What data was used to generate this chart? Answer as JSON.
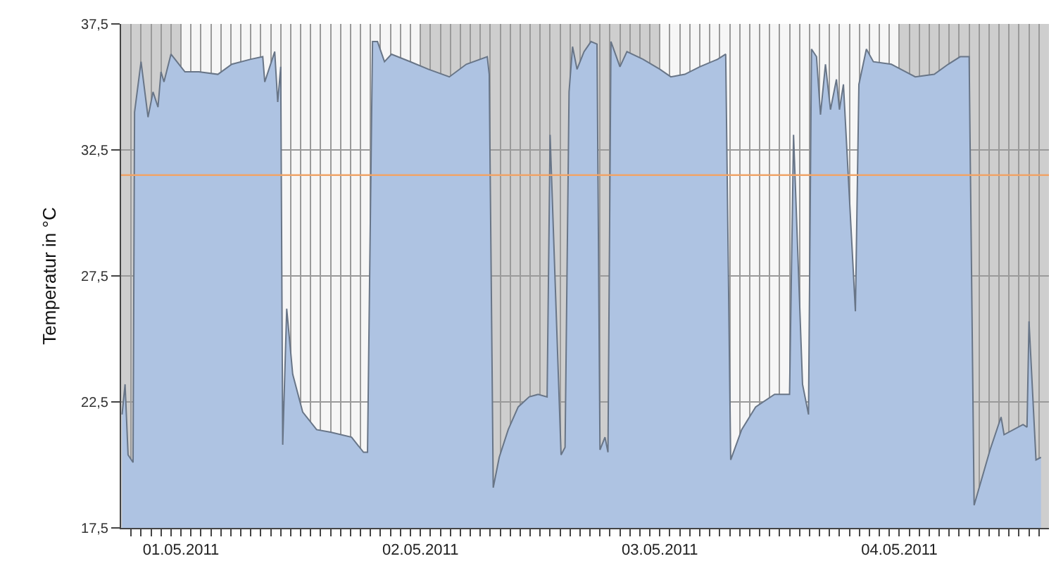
{
  "chart_data": {
    "type": "area",
    "ylabel": "Temperatur in °C",
    "xlim": [
      "2011-04-30T18:00",
      "2011-05-04T15:00"
    ],
    "ylim": [
      17.5,
      37.5
    ],
    "yticks": [
      {
        "value": 17.5,
        "label": "17,5"
      },
      {
        "value": 22.5,
        "label": "22,5"
      },
      {
        "value": 27.5,
        "label": "27,5"
      },
      {
        "value": 32.5,
        "label": "32,5"
      },
      {
        "value": 37.5,
        "label": "37,5"
      }
    ],
    "xticks": [
      {
        "value": "2011-04-30T19:00",
        "label": null
      },
      {
        "value": "2011-04-30T20:00",
        "label": null
      },
      {
        "value": "2011-04-30T21:00",
        "label": null
      },
      {
        "value": "2011-04-30T22:00",
        "label": null
      },
      {
        "value": "2011-04-30T23:00",
        "label": null
      },
      {
        "value": "2011-05-01T00:00",
        "label": "01.05.2011"
      },
      {
        "value": "2011-05-01T01:00",
        "label": null
      },
      {
        "value": "2011-05-01T02:00",
        "label": null
      },
      {
        "value": "2011-05-01T03:00",
        "label": null
      },
      {
        "value": "2011-05-01T04:00",
        "label": null
      },
      {
        "value": "2011-05-01T05:00",
        "label": null
      },
      {
        "value": "2011-05-01T06:00",
        "label": null
      },
      {
        "value": "2011-05-01T07:00",
        "label": null
      },
      {
        "value": "2011-05-01T08:00",
        "label": null
      },
      {
        "value": "2011-05-01T09:00",
        "label": null
      },
      {
        "value": "2011-05-01T10:00",
        "label": null
      },
      {
        "value": "2011-05-01T11:00",
        "label": null
      },
      {
        "value": "2011-05-01T12:00",
        "label": null
      },
      {
        "value": "2011-05-01T13:00",
        "label": null
      },
      {
        "value": "2011-05-01T14:00",
        "label": null
      },
      {
        "value": "2011-05-01T15:00",
        "label": null
      },
      {
        "value": "2011-05-01T16:00",
        "label": null
      },
      {
        "value": "2011-05-01T17:00",
        "label": null
      },
      {
        "value": "2011-05-01T18:00",
        "label": null
      },
      {
        "value": "2011-05-01T19:00",
        "label": null
      },
      {
        "value": "2011-05-01T20:00",
        "label": null
      },
      {
        "value": "2011-05-01T21:00",
        "label": null
      },
      {
        "value": "2011-05-01T22:00",
        "label": null
      },
      {
        "value": "2011-05-01T23:00",
        "label": null
      },
      {
        "value": "2011-05-02T00:00",
        "label": "02.05.2011"
      },
      {
        "value": "2011-05-02T01:00",
        "label": null
      },
      {
        "value": "2011-05-02T02:00",
        "label": null
      },
      {
        "value": "2011-05-02T03:00",
        "label": null
      },
      {
        "value": "2011-05-02T04:00",
        "label": null
      },
      {
        "value": "2011-05-02T05:00",
        "label": null
      },
      {
        "value": "2011-05-02T06:00",
        "label": null
      },
      {
        "value": "2011-05-02T07:00",
        "label": null
      },
      {
        "value": "2011-05-02T08:00",
        "label": null
      },
      {
        "value": "2011-05-02T09:00",
        "label": null
      },
      {
        "value": "2011-05-02T10:00",
        "label": null
      },
      {
        "value": "2011-05-02T11:00",
        "label": null
      },
      {
        "value": "2011-05-02T12:00",
        "label": null
      },
      {
        "value": "2011-05-02T13:00",
        "label": null
      },
      {
        "value": "2011-05-02T14:00",
        "label": null
      },
      {
        "value": "2011-05-02T15:00",
        "label": null
      },
      {
        "value": "2011-05-02T16:00",
        "label": null
      },
      {
        "value": "2011-05-02T17:00",
        "label": null
      },
      {
        "value": "2011-05-02T18:00",
        "label": null
      },
      {
        "value": "2011-05-02T19:00",
        "label": null
      },
      {
        "value": "2011-05-02T20:00",
        "label": null
      },
      {
        "value": "2011-05-02T21:00",
        "label": null
      },
      {
        "value": "2011-05-02T22:00",
        "label": null
      },
      {
        "value": "2011-05-02T23:00",
        "label": null
      },
      {
        "value": "2011-05-03T00:00",
        "label": "03.05.2011"
      },
      {
        "value": "2011-05-03T01:00",
        "label": null
      },
      {
        "value": "2011-05-03T02:00",
        "label": null
      },
      {
        "value": "2011-05-03T03:00",
        "label": null
      },
      {
        "value": "2011-05-03T04:00",
        "label": null
      },
      {
        "value": "2011-05-03T05:00",
        "label": null
      },
      {
        "value": "2011-05-03T06:00",
        "label": null
      },
      {
        "value": "2011-05-03T07:00",
        "label": null
      },
      {
        "value": "2011-05-03T08:00",
        "label": null
      },
      {
        "value": "2011-05-03T09:00",
        "label": null
      },
      {
        "value": "2011-05-03T10:00",
        "label": null
      },
      {
        "value": "2011-05-03T11:00",
        "label": null
      },
      {
        "value": "2011-05-03T12:00",
        "label": null
      },
      {
        "value": "2011-05-03T13:00",
        "label": null
      },
      {
        "value": "2011-05-03T14:00",
        "label": null
      },
      {
        "value": "2011-05-03T15:00",
        "label": null
      },
      {
        "value": "2011-05-03T16:00",
        "label": null
      },
      {
        "value": "2011-05-03T17:00",
        "label": null
      },
      {
        "value": "2011-05-03T18:00",
        "label": null
      },
      {
        "value": "2011-05-03T19:00",
        "label": null
      },
      {
        "value": "2011-05-03T20:00",
        "label": null
      },
      {
        "value": "2011-05-03T21:00",
        "label": null
      },
      {
        "value": "2011-05-03T22:00",
        "label": null
      },
      {
        "value": "2011-05-03T23:00",
        "label": null
      },
      {
        "value": "2011-05-04T00:00",
        "label": "04.05.2011"
      },
      {
        "value": "2011-05-04T01:00",
        "label": null
      },
      {
        "value": "2011-05-04T02:00",
        "label": null
      },
      {
        "value": "2011-05-04T03:00",
        "label": null
      },
      {
        "value": "2011-05-04T04:00",
        "label": null
      },
      {
        "value": "2011-05-04T05:00",
        "label": null
      },
      {
        "value": "2011-05-04T06:00",
        "label": null
      },
      {
        "value": "2011-05-04T07:00",
        "label": null
      },
      {
        "value": "2011-05-04T08:00",
        "label": null
      },
      {
        "value": "2011-05-04T09:00",
        "label": null
      },
      {
        "value": "2011-05-04T10:00",
        "label": null
      },
      {
        "value": "2011-05-04T11:00",
        "label": null
      },
      {
        "value": "2011-05-04T12:00",
        "label": null
      },
      {
        "value": "2011-05-04T13:00",
        "label": null
      },
      {
        "value": "2011-05-04T14:00",
        "label": null
      }
    ],
    "grid": true,
    "bands": [
      {
        "axis": "x",
        "from": "2011-04-30T18:00",
        "to": "2011-05-01T00:00",
        "color": "#c4c4c4"
      },
      {
        "axis": "x",
        "from": "2011-05-02T00:00",
        "to": "2011-05-03T00:00",
        "color": "#c4c4c4"
      },
      {
        "axis": "x",
        "from": "2011-05-04T00:00",
        "to": "2011-05-04T15:00",
        "color": "#c4c4c4"
      }
    ],
    "ref_lines": [
      {
        "axis": "y",
        "value": 31.5,
        "color": "#f0a468"
      }
    ],
    "x": [
      "2011-04-30T18:06",
      "2011-04-30T18:24",
      "2011-04-30T18:42",
      "2011-04-30T19:12",
      "2011-04-30T19:21",
      "2011-04-30T20:00",
      "2011-04-30T20:42",
      "2011-04-30T21:12",
      "2011-04-30T21:42",
      "2011-04-30T22:00",
      "2011-04-30T22:18",
      "2011-04-30T23:00",
      "2011-05-01T00:24",
      "2011-05-01T01:48",
      "2011-05-01T03:42",
      "2011-05-01T05:06",
      "2011-05-01T07:00",
      "2011-05-01T08:12",
      "2011-05-01T08:24",
      "2011-05-01T09:24",
      "2011-05-01T09:42",
      "2011-05-01T10:00",
      "2011-05-01T10:12",
      "2011-05-01T10:36",
      "2011-05-01T11:12",
      "2011-05-01T12:12",
      "2011-05-01T13:36",
      "2011-05-01T15:00",
      "2011-05-01T17:06",
      "2011-05-01T18:18",
      "2011-05-01T18:42",
      "2011-05-01T19:12",
      "2011-05-01T19:42",
      "2011-05-01T20:24",
      "2011-05-01T21:06",
      "2011-05-01T23:00",
      "2011-05-02T00:48",
      "2011-05-02T02:54",
      "2011-05-02T04:36",
      "2011-05-02T06:42",
      "2011-05-02T06:54",
      "2011-05-02T07:18",
      "2011-05-02T07:54",
      "2011-05-02T08:48",
      "2011-05-02T09:48",
      "2011-05-02T10:54",
      "2011-05-02T11:48",
      "2011-05-02T12:42",
      "2011-05-02T13:00",
      "2011-05-02T14:06",
      "2011-05-02T14:30",
      "2011-05-02T14:54",
      "2011-05-02T15:15",
      "2011-05-02T15:42",
      "2011-05-02T16:24",
      "2011-05-02T17:06",
      "2011-05-02T17:42",
      "2011-05-02T18:00",
      "2011-05-02T18:30",
      "2011-05-02T18:48",
      "2011-05-02T19:06",
      "2011-05-02T20:00",
      "2011-05-02T20:42",
      "2011-05-02T22:18",
      "2011-05-03T00:00",
      "2011-05-03T01:06",
      "2011-05-03T02:30",
      "2011-05-03T04:00",
      "2011-05-03T05:48",
      "2011-05-03T06:36",
      "2011-05-03T07:06",
      "2011-05-03T08:12",
      "2011-05-03T09:36",
      "2011-05-03T11:30",
      "2011-05-03T13:00",
      "2011-05-03T13:24",
      "2011-05-03T14:18",
      "2011-05-03T14:54",
      "2011-05-03T15:12",
      "2011-05-03T15:42",
      "2011-05-03T16:06",
      "2011-05-03T16:36",
      "2011-05-03T17:06",
      "2011-05-03T17:42",
      "2011-05-03T18:00",
      "2011-05-03T18:24",
      "2011-05-03T19:36",
      "2011-05-03T19:57",
      "2011-05-03T20:42",
      "2011-05-03T21:24",
      "2011-05-03T23:12",
      "2011-05-04T01:36",
      "2011-05-04T03:30",
      "2011-05-04T04:54",
      "2011-05-04T06:06",
      "2011-05-04T07:00",
      "2011-05-04T07:30",
      "2011-05-04T09:06",
      "2011-05-04T10:12",
      "2011-05-04T10:30",
      "2011-05-04T12:24",
      "2011-05-04T12:48",
      "2011-05-04T13:00",
      "2011-05-04T13:42",
      "2011-05-04T14:12"
    ],
    "series": [
      {
        "color": "#aec3e2",
        "values": [
          22.0,
          23.2,
          20.4,
          20.1,
          34.0,
          36.0,
          33.8,
          34.8,
          34.2,
          35.6,
          35.2,
          36.3,
          35.6,
          35.6,
          35.5,
          35.9,
          36.1,
          36.2,
          35.2,
          36.4,
          34.4,
          35.8,
          20.8,
          26.2,
          23.6,
          22.1,
          21.4,
          21.3,
          21.1,
          20.5,
          20.5,
          36.8,
          36.8,
          36.0,
          36.3,
          36.0,
          35.7,
          35.4,
          35.9,
          36.2,
          35.5,
          19.1,
          20.3,
          21.4,
          22.3,
          22.7,
          22.8,
          22.7,
          33.1,
          20.4,
          20.7,
          34.8,
          36.6,
          35.7,
          36.4,
          36.8,
          36.7,
          20.6,
          21.1,
          20.5,
          36.8,
          35.8,
          36.4,
          36.1,
          35.7,
          35.4,
          35.5,
          35.8,
          36.1,
          36.3,
          20.2,
          21.4,
          22.3,
          22.8,
          22.8,
          33.1,
          23.2,
          22.0,
          36.5,
          36.2,
          33.9,
          35.9,
          34.1,
          35.3,
          34.1,
          35.1,
          26.1,
          35.1,
          36.5,
          36.0,
          35.9,
          35.4,
          35.5,
          35.9,
          36.2,
          36.2,
          18.4,
          20.6,
          21.9,
          21.2,
          21.6,
          21.5,
          25.7,
          20.2,
          20.3
        ]
      }
    ]
  }
}
